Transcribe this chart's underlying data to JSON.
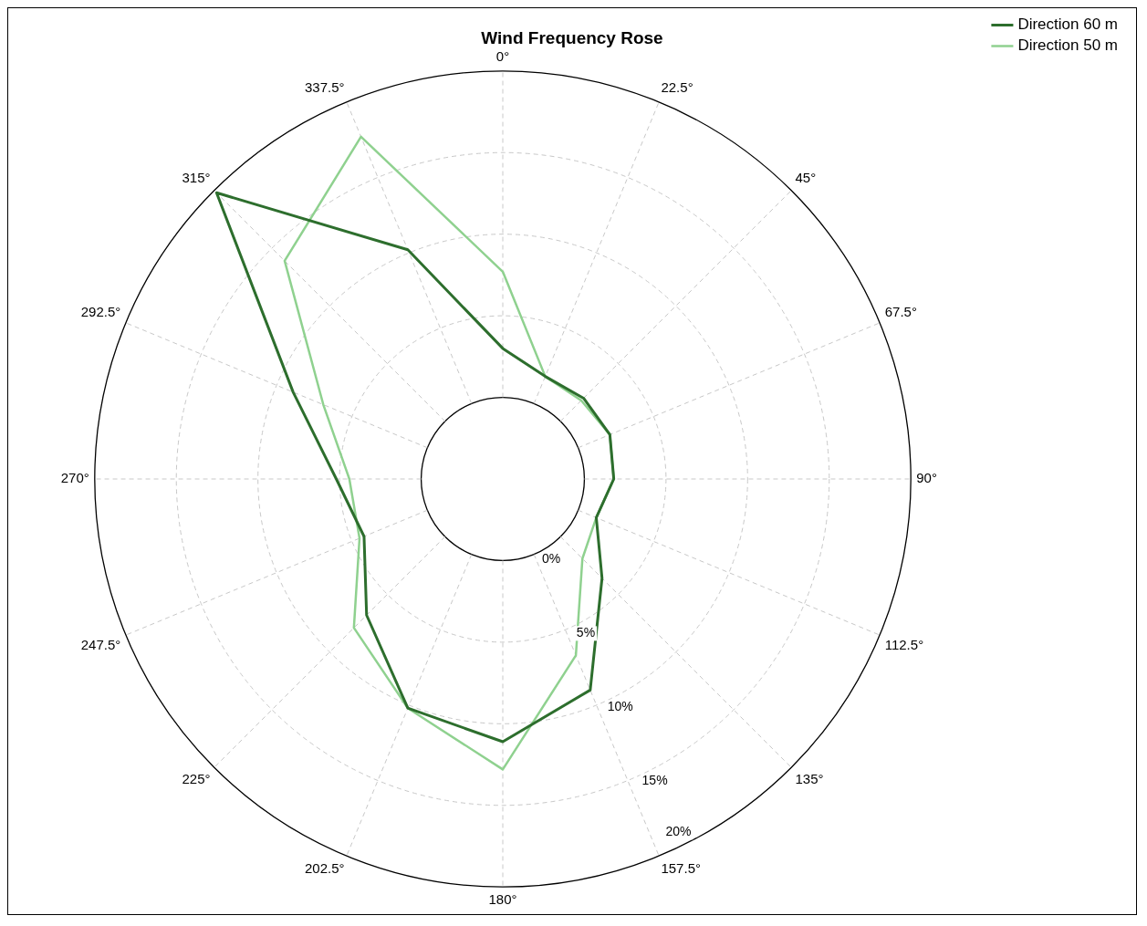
{
  "chart_data": {
    "type": "radar",
    "title": "Wind Frequency Rose",
    "categories": [
      "0°",
      "22.5°",
      "45°",
      "67.5°",
      "90°",
      "112.5°",
      "135°",
      "157.5°",
      "180°",
      "202.5°",
      "225°",
      "247.5°",
      "270°",
      "292.5°",
      "315°",
      "337.5°"
    ],
    "series": [
      {
        "name": "Direction 60 m",
        "color": "#2d6e2d",
        "values": [
          3.0,
          1.8,
          2.0,
          2.1,
          1.8,
          1.2,
          3.6,
          9.0,
          11.1,
          10.2,
          6.8,
          4.2,
          5.2,
          8.9,
          19.8,
          10.2
        ]
      },
      {
        "name": "Direction 50 m",
        "color": "#8fd18f",
        "values": [
          7.7,
          1.8,
          1.8,
          2.1,
          1.8,
          1.2,
          1.9,
          6.7,
          12.8,
          10.2,
          7.9,
          4.5,
          4.4,
          6.9,
          13.9,
          17.7
        ]
      }
    ],
    "ylim": [
      -5,
      20
    ],
    "yticks": [
      {
        "value": 0,
        "label": "0%"
      },
      {
        "value": 5,
        "label": "5%"
      },
      {
        "value": 10,
        "label": "10%"
      },
      {
        "value": 15,
        "label": "15%"
      },
      {
        "value": 20,
        "label": "20%"
      }
    ],
    "grid": true,
    "legend": "top right",
    "marker": "none",
    "line_style": "solid"
  }
}
